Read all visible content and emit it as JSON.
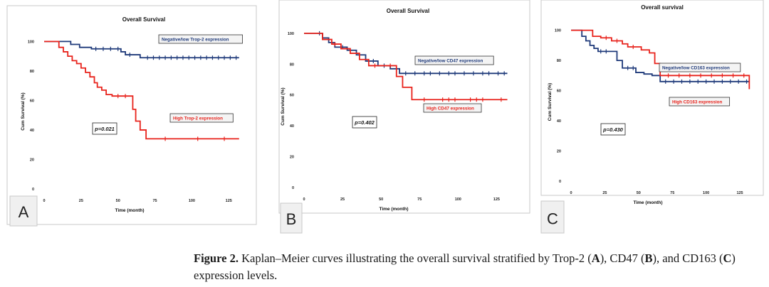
{
  "colors": {
    "low": "#1f3a7a",
    "high": "#e8231c",
    "axis": "#555555",
    "panel_border": "#c8c8c8"
  },
  "chart_data": [
    {
      "type": "line",
      "panel_label": "A",
      "title": "Overall Survival",
      "xlabel": "Time (month)",
      "ylabel": "Cum Survival (%)",
      "xlim": [
        0,
        135
      ],
      "ylim": [
        0,
        105
      ],
      "xticks": [
        0,
        25,
        50,
        75,
        100,
        125
      ],
      "yticks": [
        0,
        20,
        40,
        60,
        80,
        100
      ],
      "p_value": "p=0.021",
      "series": [
        {
          "name": "Negative/low Trop-2 expression",
          "color": "#1f3a7a",
          "x": [
            0,
            7,
            18,
            24,
            32,
            52,
            55,
            65,
            132
          ],
          "y": [
            100,
            100,
            98,
            96,
            95,
            93,
            91,
            89,
            89
          ],
          "censors": [
            35,
            40,
            45,
            50,
            58,
            70,
            74,
            78,
            82,
            86,
            90,
            94,
            98,
            102,
            106,
            110,
            114,
            118,
            122,
            126,
            130
          ]
        },
        {
          "name": "High Trop-2 expression",
          "color": "#e8231c",
          "x": [
            0,
            7,
            10,
            13,
            16,
            19,
            22,
            25,
            28,
            31,
            34,
            36,
            39,
            42,
            46,
            60,
            62,
            65,
            69,
            132
          ],
          "y": [
            100,
            100,
            96,
            93,
            90,
            87,
            85,
            82,
            79,
            76,
            72,
            69,
            67,
            64,
            63,
            54,
            46,
            40,
            34,
            34
          ],
          "censors": [
            50,
            55,
            82,
            104,
            122
          ]
        }
      ]
    },
    {
      "type": "line",
      "panel_label": "B",
      "title": "Overall Survival",
      "xlabel": "Time (month)",
      "ylabel": "Cum Survival (%)",
      "xlim": [
        0,
        135
      ],
      "ylim": [
        0,
        105
      ],
      "xticks": [
        0,
        25,
        50,
        75,
        100,
        125
      ],
      "yticks": [
        0,
        20,
        40,
        60,
        80,
        100
      ],
      "p_value": "p=0.402",
      "series": [
        {
          "name": "Negative/low CD47 expression",
          "color": "#1f3a7a",
          "x": [
            0,
            8,
            12,
            16,
            20,
            28,
            34,
            40,
            48,
            56,
            62,
            132
          ],
          "y": [
            100,
            100,
            97,
            94,
            91,
            89,
            86,
            82,
            79,
            77,
            74,
            74
          ],
          "censors": [
            10,
            18,
            25,
            30,
            36,
            45,
            52,
            66,
            72,
            78,
            82,
            88,
            94,
            98,
            104,
            110,
            116,
            120,
            126,
            130
          ]
        },
        {
          "name": "High CD47 expression",
          "color": "#e8231c",
          "x": [
            0,
            8,
            12,
            18,
            24,
            30,
            36,
            42,
            54,
            60,
            64,
            70,
            132
          ],
          "y": [
            100,
            100,
            96,
            93,
            90,
            87,
            83,
            79,
            79,
            72,
            65,
            57,
            57
          ],
          "censors": [
            20,
            46,
            56,
            78,
            90,
            94,
            98,
            108,
            112,
            116,
            128
          ]
        }
      ]
    },
    {
      "type": "line",
      "panel_label": "C",
      "title": "Overall survival",
      "xlabel": "Time (month)",
      "ylabel": "Cum Survival (%)",
      "xlim": [
        0,
        135
      ],
      "ylim": [
        0,
        105
      ],
      "xticks": [
        0,
        25,
        50,
        75,
        100,
        125
      ],
      "yticks": [
        0,
        20,
        40,
        60,
        80,
        100
      ],
      "p_value": "p=0.430",
      "series": [
        {
          "name": "Negative/low CD163 expression",
          "color": "#1f3a7a",
          "x": [
            0,
            5,
            8,
            11,
            14,
            17,
            20,
            30,
            34,
            38,
            48,
            54,
            60,
            66,
            132
          ],
          "y": [
            100,
            100,
            96,
            93,
            90,
            88,
            86,
            86,
            80,
            75,
            72,
            71,
            70,
            66,
            66
          ],
          "censors": [
            22,
            26,
            42,
            46,
            70,
            76,
            82,
            88,
            94,
            100,
            106,
            112,
            118,
            124,
            130
          ]
        },
        {
          "name": "High CD163 expression",
          "color": "#e8231c",
          "x": [
            0,
            12,
            16,
            22,
            30,
            38,
            42,
            52,
            58,
            62,
            66,
            132
          ],
          "y": [
            100,
            100,
            96,
            95,
            93,
            91,
            89,
            87,
            85,
            78,
            70,
            61
          ],
          "censors": [
            26,
            34,
            46,
            72,
            80,
            88,
            96,
            104,
            112,
            120,
            128
          ]
        }
      ]
    }
  ],
  "caption": {
    "lead": "Figure 2.",
    "text_1": " Kaplan–Meier curves illustrating the overall survival stratified by Trop-2 (",
    "a": "A",
    "text_2": "), CD47 (",
    "b": "B",
    "text_3": "), and CD163 (",
    "c": "C",
    "text_4": ") expression levels."
  }
}
